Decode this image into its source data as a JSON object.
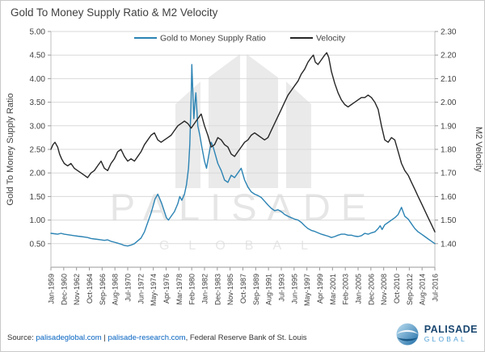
{
  "page": {
    "title": "Gold To Money Supply Ratio & M2 Velocity"
  },
  "watermark": {
    "line1": "PALISADE",
    "line2": "GLOBAL"
  },
  "brand": {
    "name": "PALISADE",
    "sub": "GLOBAL"
  },
  "source": {
    "prefix": "Source: ",
    "link1": "palisadeglobal.com",
    "separator": " | ",
    "link2": "palisade-research.com",
    "suffix": ", Federal Reserve Bank of St. Louis"
  },
  "chart_data": {
    "type": "line",
    "title": "Gold To Money Supply Ratio & M2 Velocity",
    "grid_color": "#d9d9d9",
    "legend_position": "top-center",
    "x_range": [
      1959.0,
      2016.5
    ],
    "x_labels": [
      "Jan-1959",
      "Dec-1960",
      "Nov-1962",
      "Oct-1964",
      "Sep-1966",
      "Aug-1968",
      "Jul-1970",
      "Jun-1972",
      "May-1974",
      "Apr-1976",
      "Mar-1978",
      "Feb-1980",
      "Jan-1982",
      "Dec-1983",
      "Nov-1985",
      "Oct-1987",
      "Sep-1989",
      "Aug-1991",
      "Jul-1993",
      "Jun-1995",
      "May-1997",
      "Apr-1999",
      "Mar-2001",
      "Feb-2003",
      "Jan-2005",
      "Dec-2006",
      "Nov-2008",
      "Oct-2010",
      "Sep-2012",
      "Aug-2014",
      "Jul-2016"
    ],
    "left_axis": {
      "label": "Gold To Money Supply Ratio",
      "min": 0,
      "max": 5,
      "ticks": [
        "5.00",
        "4.50",
        "4.00",
        "3.50",
        "3.00",
        "2.50",
        "2.00",
        "1.50",
        "1.00",
        "0.50"
      ]
    },
    "right_axis": {
      "label": "M2 Velocity",
      "min": 1.3,
      "max": 2.3,
      "ticks": [
        "2.30",
        "2.20",
        "2.10",
        "2.00",
        "1.90",
        "1.80",
        "1.70",
        "1.60",
        "1.50",
        "1.40"
      ]
    },
    "series": [
      {
        "name": "Gold to Money Supply Ratio",
        "color": "#2b83b4",
        "axis": "left",
        "points": [
          [
            1959.0,
            0.72
          ],
          [
            1959.5,
            0.71
          ],
          [
            1960.0,
            0.7
          ],
          [
            1960.5,
            0.72
          ],
          [
            1961.0,
            0.7
          ],
          [
            1961.5,
            0.69
          ],
          [
            1962.0,
            0.68
          ],
          [
            1962.5,
            0.67
          ],
          [
            1963.0,
            0.66
          ],
          [
            1963.5,
            0.65
          ],
          [
            1964.0,
            0.64
          ],
          [
            1964.5,
            0.63
          ],
          [
            1965.0,
            0.61
          ],
          [
            1965.5,
            0.6
          ],
          [
            1966.0,
            0.59
          ],
          [
            1966.5,
            0.58
          ],
          [
            1967.0,
            0.57
          ],
          [
            1967.5,
            0.58
          ],
          [
            1968.0,
            0.55
          ],
          [
            1968.5,
            0.53
          ],
          [
            1969.0,
            0.51
          ],
          [
            1969.5,
            0.49
          ],
          [
            1970.0,
            0.46
          ],
          [
            1970.5,
            0.45
          ],
          [
            1971.0,
            0.47
          ],
          [
            1971.5,
            0.5
          ],
          [
            1972.0,
            0.56
          ],
          [
            1972.5,
            0.62
          ],
          [
            1973.0,
            0.75
          ],
          [
            1973.5,
            0.95
          ],
          [
            1974.0,
            1.15
          ],
          [
            1974.3,
            1.3
          ],
          [
            1974.6,
            1.45
          ],
          [
            1975.0,
            1.55
          ],
          [
            1975.3,
            1.45
          ],
          [
            1975.6,
            1.35
          ],
          [
            1976.0,
            1.18
          ],
          [
            1976.3,
            1.05
          ],
          [
            1976.6,
            1.0
          ],
          [
            1977.0,
            1.08
          ],
          [
            1977.5,
            1.18
          ],
          [
            1978.0,
            1.35
          ],
          [
            1978.3,
            1.5
          ],
          [
            1978.6,
            1.42
          ],
          [
            1979.0,
            1.55
          ],
          [
            1979.3,
            1.75
          ],
          [
            1979.6,
            2.1
          ],
          [
            1979.8,
            2.6
          ],
          [
            1980.0,
            3.6
          ],
          [
            1980.1,
            4.3
          ],
          [
            1980.25,
            3.75
          ],
          [
            1980.4,
            3.15
          ],
          [
            1980.55,
            3.45
          ],
          [
            1980.7,
            3.7
          ],
          [
            1980.85,
            3.35
          ],
          [
            1981.0,
            3.0
          ],
          [
            1981.3,
            2.8
          ],
          [
            1981.6,
            2.55
          ],
          [
            1982.0,
            2.25
          ],
          [
            1982.3,
            2.1
          ],
          [
            1982.6,
            2.35
          ],
          [
            1983.0,
            2.65
          ],
          [
            1983.3,
            2.55
          ],
          [
            1983.6,
            2.4
          ],
          [
            1984.0,
            2.2
          ],
          [
            1984.5,
            2.05
          ],
          [
            1985.0,
            1.85
          ],
          [
            1985.5,
            1.8
          ],
          [
            1986.0,
            1.95
          ],
          [
            1986.5,
            1.9
          ],
          [
            1987.0,
            2.0
          ],
          [
            1987.5,
            2.1
          ],
          [
            1988.0,
            1.85
          ],
          [
            1988.5,
            1.7
          ],
          [
            1989.0,
            1.6
          ],
          [
            1989.5,
            1.55
          ],
          [
            1990.0,
            1.52
          ],
          [
            1990.5,
            1.48
          ],
          [
            1991.0,
            1.4
          ],
          [
            1991.5,
            1.32
          ],
          [
            1992.0,
            1.25
          ],
          [
            1992.5,
            1.2
          ],
          [
            1993.0,
            1.22
          ],
          [
            1993.5,
            1.18
          ],
          [
            1994.0,
            1.12
          ],
          [
            1994.5,
            1.08
          ],
          [
            1995.0,
            1.05
          ],
          [
            1995.5,
            1.02
          ],
          [
            1996.0,
            1.0
          ],
          [
            1996.5,
            0.95
          ],
          [
            1997.0,
            0.88
          ],
          [
            1997.5,
            0.82
          ],
          [
            1998.0,
            0.78
          ],
          [
            1998.5,
            0.76
          ],
          [
            1999.0,
            0.73
          ],
          [
            1999.5,
            0.7
          ],
          [
            2000.0,
            0.68
          ],
          [
            2000.5,
            0.66
          ],
          [
            2001.0,
            0.63
          ],
          [
            2001.5,
            0.65
          ],
          [
            2002.0,
            0.68
          ],
          [
            2002.5,
            0.7
          ],
          [
            2003.0,
            0.7
          ],
          [
            2003.5,
            0.68
          ],
          [
            2004.0,
            0.68
          ],
          [
            2004.5,
            0.66
          ],
          [
            2005.0,
            0.65
          ],
          [
            2005.5,
            0.67
          ],
          [
            2006.0,
            0.72
          ],
          [
            2006.5,
            0.7
          ],
          [
            2007.0,
            0.73
          ],
          [
            2007.5,
            0.75
          ],
          [
            2008.0,
            0.82
          ],
          [
            2008.3,
            0.88
          ],
          [
            2008.6,
            0.8
          ],
          [
            2009.0,
            0.9
          ],
          [
            2009.5,
            0.95
          ],
          [
            2010.0,
            1.0
          ],
          [
            2010.5,
            1.05
          ],
          [
            2011.0,
            1.12
          ],
          [
            2011.5,
            1.27
          ],
          [
            2011.8,
            1.15
          ],
          [
            2012.0,
            1.08
          ],
          [
            2012.5,
            1.02
          ],
          [
            2013.0,
            0.92
          ],
          [
            2013.5,
            0.82
          ],
          [
            2014.0,
            0.75
          ],
          [
            2014.5,
            0.7
          ],
          [
            2015.0,
            0.65
          ],
          [
            2015.5,
            0.6
          ],
          [
            2016.0,
            0.55
          ],
          [
            2016.5,
            0.5
          ]
        ]
      },
      {
        "name": "Velocity",
        "color": "#262626",
        "axis": "right",
        "points": [
          [
            1959.0,
            1.8
          ],
          [
            1959.3,
            1.82
          ],
          [
            1959.6,
            1.83
          ],
          [
            1960.0,
            1.81
          ],
          [
            1960.3,
            1.78
          ],
          [
            1960.6,
            1.76
          ],
          [
            1961.0,
            1.74
          ],
          [
            1961.5,
            1.73
          ],
          [
            1962.0,
            1.74
          ],
          [
            1962.5,
            1.72
          ],
          [
            1963.0,
            1.71
          ],
          [
            1963.5,
            1.7
          ],
          [
            1964.0,
            1.69
          ],
          [
            1964.5,
            1.68
          ],
          [
            1965.0,
            1.7
          ],
          [
            1965.5,
            1.71
          ],
          [
            1966.0,
            1.73
          ],
          [
            1966.5,
            1.75
          ],
          [
            1967.0,
            1.72
          ],
          [
            1967.5,
            1.71
          ],
          [
            1968.0,
            1.74
          ],
          [
            1968.5,
            1.76
          ],
          [
            1969.0,
            1.79
          ],
          [
            1969.5,
            1.8
          ],
          [
            1970.0,
            1.77
          ],
          [
            1970.5,
            1.75
          ],
          [
            1971.0,
            1.76
          ],
          [
            1971.5,
            1.75
          ],
          [
            1972.0,
            1.77
          ],
          [
            1972.5,
            1.79
          ],
          [
            1973.0,
            1.82
          ],
          [
            1973.5,
            1.84
          ],
          [
            1974.0,
            1.86
          ],
          [
            1974.5,
            1.87
          ],
          [
            1975.0,
            1.84
          ],
          [
            1975.5,
            1.83
          ],
          [
            1976.0,
            1.84
          ],
          [
            1976.5,
            1.85
          ],
          [
            1977.0,
            1.86
          ],
          [
            1977.5,
            1.88
          ],
          [
            1978.0,
            1.9
          ],
          [
            1978.5,
            1.91
          ],
          [
            1979.0,
            1.92
          ],
          [
            1979.5,
            1.91
          ],
          [
            1980.0,
            1.89
          ],
          [
            1980.5,
            1.91
          ],
          [
            1981.0,
            1.93
          ],
          [
            1981.5,
            1.95
          ],
          [
            1982.0,
            1.9
          ],
          [
            1982.5,
            1.86
          ],
          [
            1983.0,
            1.81
          ],
          [
            1983.5,
            1.82
          ],
          [
            1984.0,
            1.85
          ],
          [
            1984.5,
            1.84
          ],
          [
            1985.0,
            1.82
          ],
          [
            1985.5,
            1.81
          ],
          [
            1986.0,
            1.78
          ],
          [
            1986.5,
            1.77
          ],
          [
            1987.0,
            1.79
          ],
          [
            1987.5,
            1.81
          ],
          [
            1988.0,
            1.83
          ],
          [
            1988.5,
            1.84
          ],
          [
            1989.0,
            1.86
          ],
          [
            1989.5,
            1.87
          ],
          [
            1990.0,
            1.86
          ],
          [
            1990.5,
            1.85
          ],
          [
            1991.0,
            1.84
          ],
          [
            1991.5,
            1.85
          ],
          [
            1992.0,
            1.88
          ],
          [
            1992.5,
            1.91
          ],
          [
            1993.0,
            1.94
          ],
          [
            1993.5,
            1.97
          ],
          [
            1994.0,
            2.0
          ],
          [
            1994.5,
            2.03
          ],
          [
            1995.0,
            2.05
          ],
          [
            1995.5,
            2.07
          ],
          [
            1996.0,
            2.09
          ],
          [
            1996.5,
            2.12
          ],
          [
            1997.0,
            2.14
          ],
          [
            1997.5,
            2.17
          ],
          [
            1998.0,
            2.19
          ],
          [
            1998.3,
            2.2
          ],
          [
            1998.6,
            2.17
          ],
          [
            1999.0,
            2.16
          ],
          [
            1999.5,
            2.18
          ],
          [
            2000.0,
            2.2
          ],
          [
            2000.3,
            2.21
          ],
          [
            2000.6,
            2.19
          ],
          [
            2001.0,
            2.13
          ],
          [
            2001.5,
            2.08
          ],
          [
            2002.0,
            2.04
          ],
          [
            2002.5,
            2.01
          ],
          [
            2003.0,
            1.99
          ],
          [
            2003.5,
            1.98
          ],
          [
            2004.0,
            1.99
          ],
          [
            2004.5,
            2.0
          ],
          [
            2005.0,
            2.01
          ],
          [
            2005.5,
            2.02
          ],
          [
            2006.0,
            2.02
          ],
          [
            2006.5,
            2.03
          ],
          [
            2007.0,
            2.02
          ],
          [
            2007.5,
            2.0
          ],
          [
            2008.0,
            1.97
          ],
          [
            2008.5,
            1.9
          ],
          [
            2009.0,
            1.84
          ],
          [
            2009.5,
            1.83
          ],
          [
            2010.0,
            1.85
          ],
          [
            2010.5,
            1.84
          ],
          [
            2011.0,
            1.79
          ],
          [
            2011.5,
            1.74
          ],
          [
            2012.0,
            1.71
          ],
          [
            2012.5,
            1.69
          ],
          [
            2013.0,
            1.66
          ],
          [
            2013.5,
            1.63
          ],
          [
            2014.0,
            1.6
          ],
          [
            2014.5,
            1.57
          ],
          [
            2015.0,
            1.54
          ],
          [
            2015.5,
            1.51
          ],
          [
            2016.0,
            1.48
          ],
          [
            2016.5,
            1.45
          ]
        ]
      }
    ]
  }
}
